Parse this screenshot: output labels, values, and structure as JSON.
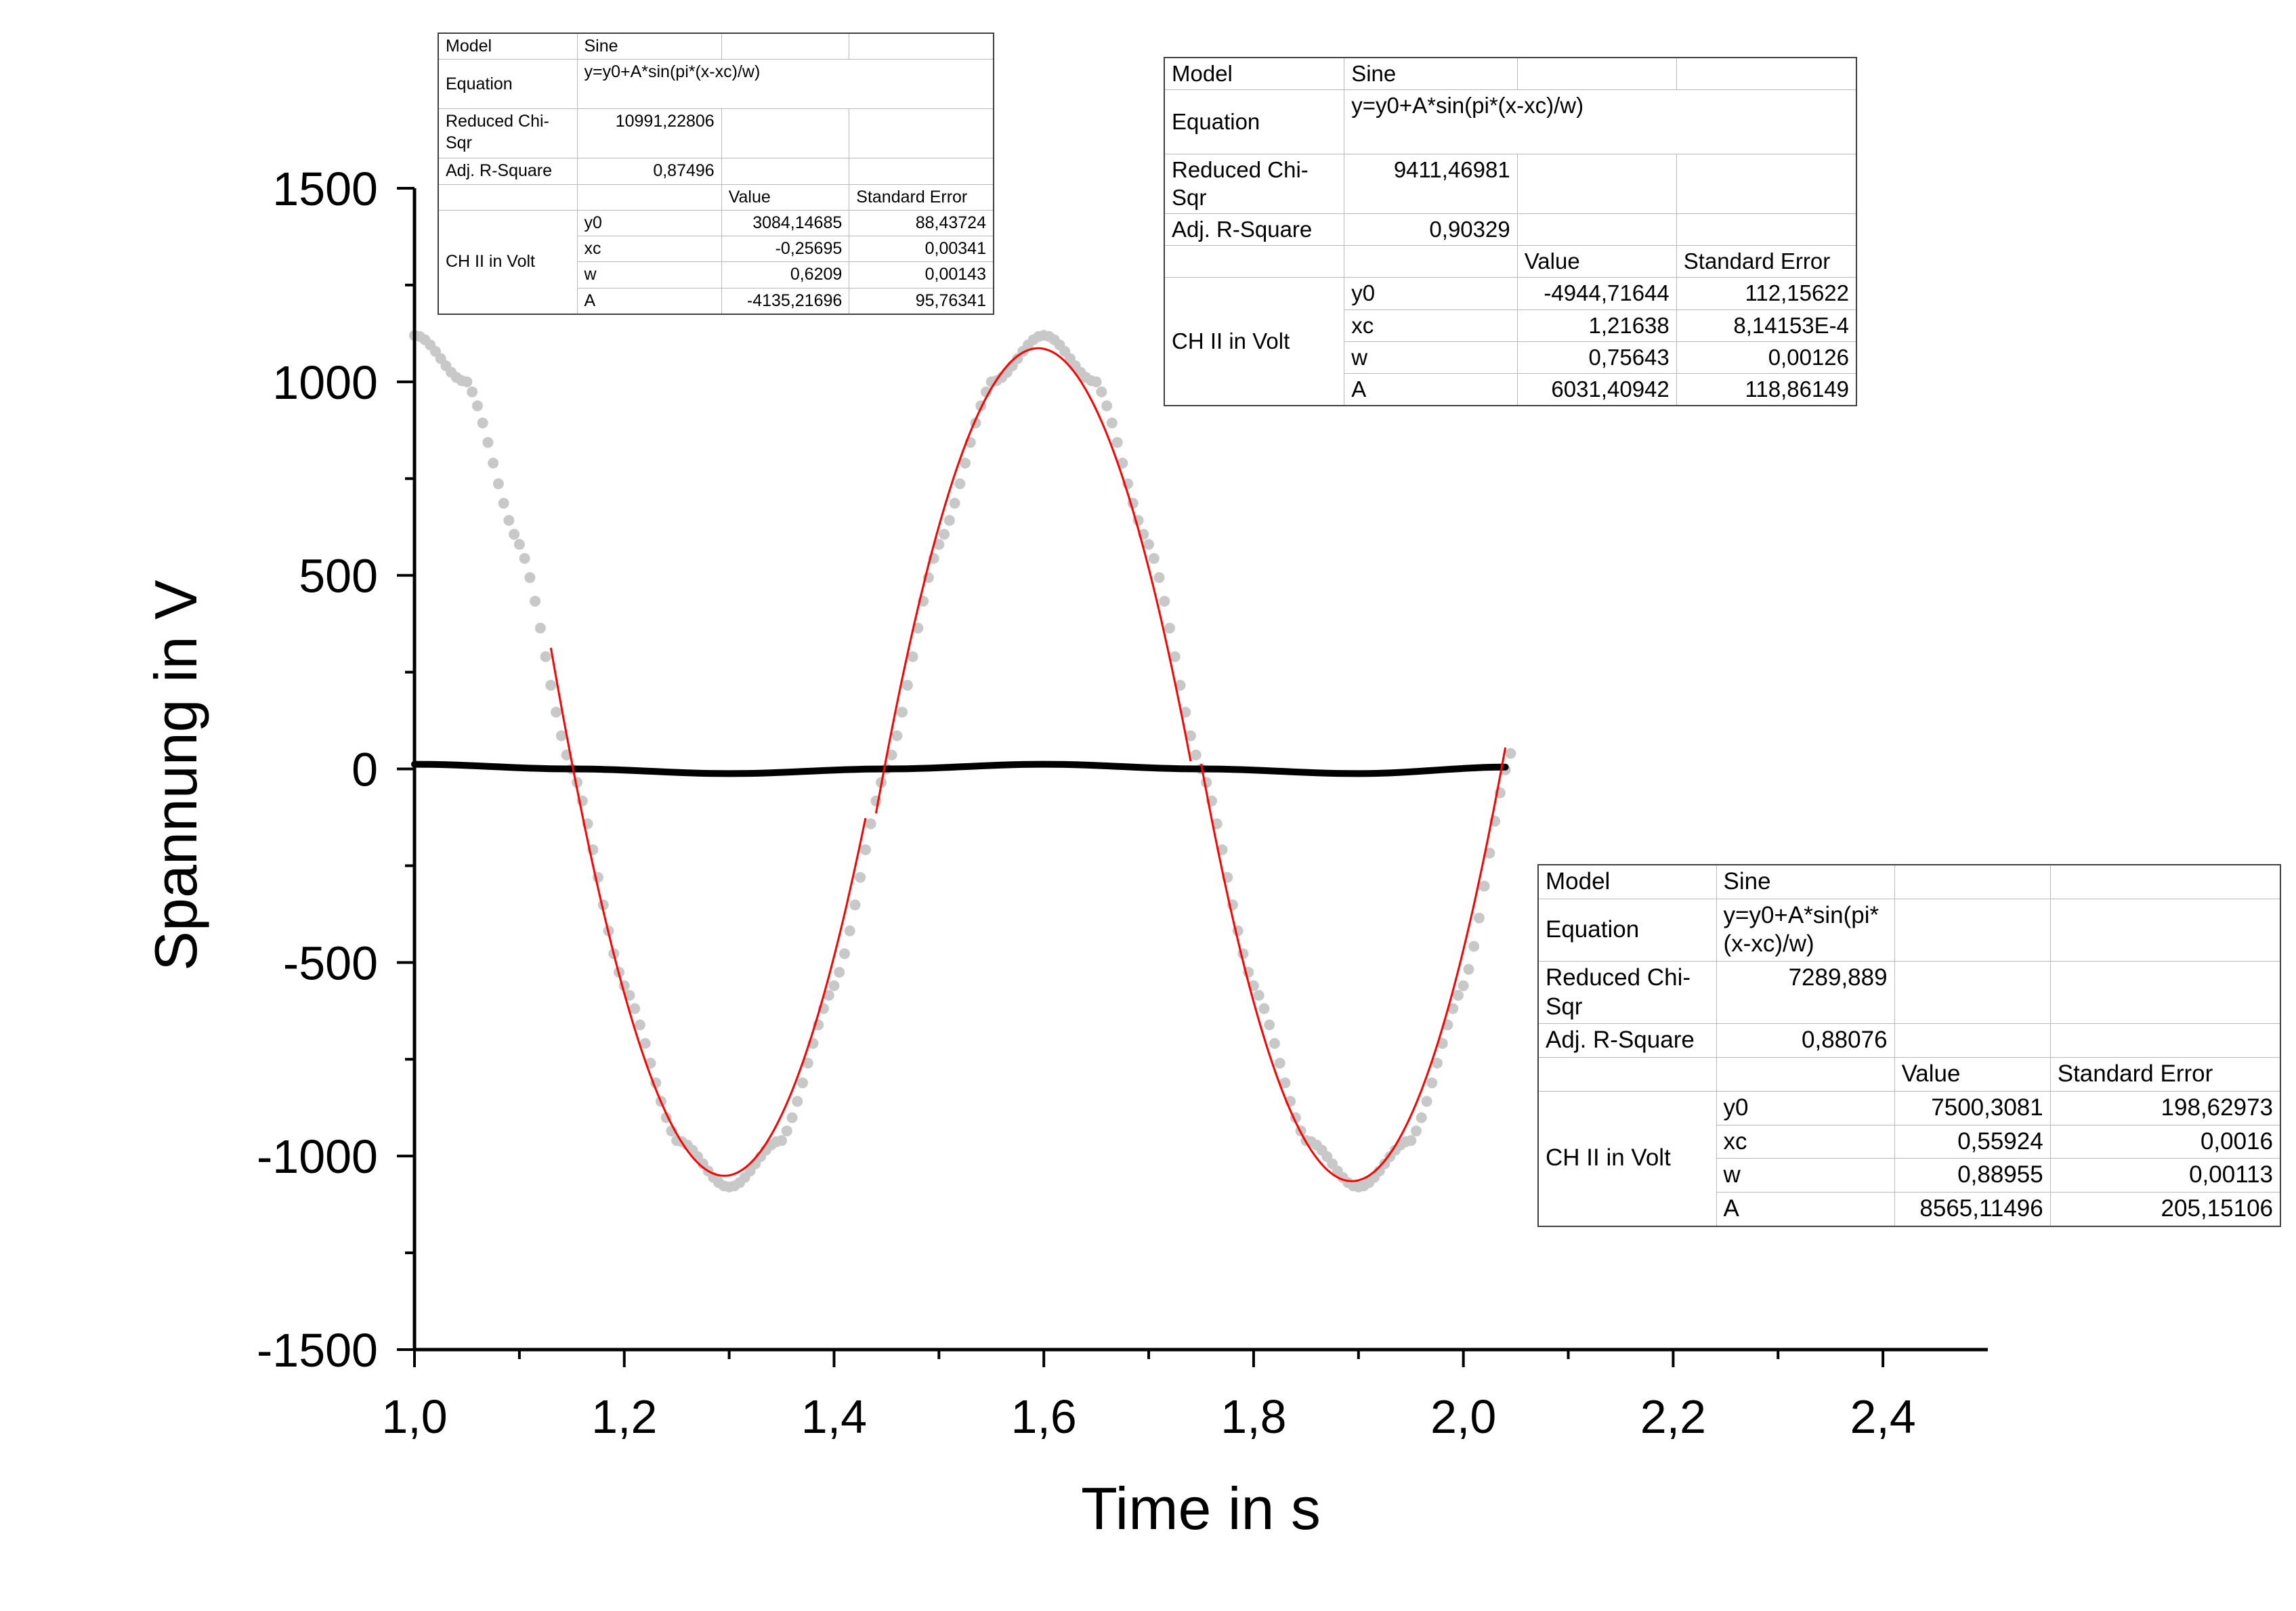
{
  "chart_data": {
    "type": "scatter",
    "title": "",
    "xlabel": "Time in s",
    "ylabel": "Spannung in V",
    "xlim": [
      1.0,
      2.5
    ],
    "ylim": [
      -1500,
      1500
    ],
    "xticks": [
      1.0,
      1.2,
      1.4,
      1.6,
      1.8,
      2.0,
      2.2,
      2.4
    ],
    "xtick_labels": [
      "1,0",
      "1,2",
      "1,4",
      "1,6",
      "1,8",
      "2,0",
      "2,2",
      "2,4"
    ],
    "yticks": [
      1500,
      1000,
      500,
      0,
      -500,
      -1000,
      -1500
    ],
    "ytick_labels": [
      "1500",
      "1000",
      "500",
      "0",
      "-500",
      "-1000",
      "-1500"
    ],
    "grid": false,
    "series": [
      {
        "kind": "scatter",
        "color": "#c8c8c8",
        "x": [
          1.0,
          1.05,
          1.1,
          1.15,
          1.2,
          1.25,
          1.3,
          1.35,
          1.4,
          1.45,
          1.5,
          1.55,
          1.6,
          1.65,
          1.7,
          1.75,
          1.8,
          1.85,
          1.9,
          1.95,
          2.0,
          2.045
        ],
        "y": [
          1120,
          1000,
          580,
          0,
          -560,
          -960,
          -1080,
          -960,
          -560,
          0,
          580,
          1000,
          1120,
          1000,
          580,
          0,
          -560,
          -960,
          -1080,
          -960,
          -560,
          40
        ]
      },
      {
        "kind": "line",
        "color": "#000000",
        "x": [
          1.0,
          1.15,
          1.3,
          1.45,
          1.6,
          1.75,
          1.9,
          2.045
        ],
        "y": [
          12,
          0,
          -12,
          0,
          12,
          0,
          -12,
          5
        ]
      },
      {
        "kind": "fit",
        "color": "#ff0000",
        "x_start": 1.13,
        "x_end": 1.43,
        "y0": 3084.14685,
        "xc": -0.25695,
        "w": 0.6209,
        "A": -4135.21696
      },
      {
        "kind": "fit",
        "color": "#ff0000",
        "x_start": 1.44,
        "x_end": 1.74,
        "y0": -4944.71644,
        "xc": 1.21638,
        "w": 0.75643,
        "A": 6031.40942
      },
      {
        "kind": "fit",
        "color": "#ff0000",
        "x_start": 1.75,
        "x_end": 2.04,
        "y0": 7500.3081,
        "xc": 0.55924,
        "w": 0.88955,
        "A": 8565.11496
      }
    ]
  },
  "fit_tables": [
    {
      "model_label": "Model",
      "model": "Sine",
      "equation_label": "Equation",
      "equation": "y=y0+A*sin(pi*(x-xc)/w)",
      "chisqr_label": "Reduced Chi-Sqr",
      "chisqr": "10991,22806",
      "r2_label": "Adj. R-Square",
      "r2": "0,87496",
      "value_header": "Value",
      "error_header": "Standard Error",
      "group_label": "CH II in Volt",
      "params": [
        {
          "name": "y0",
          "value": "3084,14685",
          "error": "88,43724"
        },
        {
          "name": "xc",
          "value": "-0,25695",
          "error": "0,00341"
        },
        {
          "name": "w",
          "value": "0,6209",
          "error": "0,00143"
        },
        {
          "name": "A",
          "value": "-4135,21696",
          "error": "95,76341"
        }
      ]
    },
    {
      "model_label": "Model",
      "model": "Sine",
      "equation_label": "Equation",
      "equation": "y=y0+A*sin(pi*(x-xc)/w)",
      "chisqr_label": "Reduced Chi-Sqr",
      "chisqr": "9411,46981",
      "r2_label": "Adj. R-Square",
      "r2": "0,90329",
      "value_header": "Value",
      "error_header": "Standard Error",
      "group_label": "CH II in Volt",
      "params": [
        {
          "name": "y0",
          "value": "-4944,71644",
          "error": "112,15622"
        },
        {
          "name": "xc",
          "value": "1,21638",
          "error": "8,14153E-4"
        },
        {
          "name": "w",
          "value": "0,75643",
          "error": "0,00126"
        },
        {
          "name": "A",
          "value": "6031,40942",
          "error": "118,86149"
        }
      ]
    },
    {
      "model_label": "Model",
      "model": "Sine",
      "equation_label": "Equation",
      "equation": "y=y0+A*sin(pi*(x-xc)/w)",
      "chisqr_label": "Reduced Chi-Sqr",
      "chisqr": "7289,889",
      "r2_label": "Adj. R-Square",
      "r2": "0,88076",
      "value_header": "Value",
      "error_header": "Standard Error",
      "group_label": "CH II in Volt",
      "params": [
        {
          "name": "y0",
          "value": "7500,3081",
          "error": "198,62973"
        },
        {
          "name": "xc",
          "value": "0,55924",
          "error": "0,0016"
        },
        {
          "name": "w",
          "value": "0,88955",
          "error": "0,00113"
        },
        {
          "name": "A",
          "value": "8565,11496",
          "error": "205,15106"
        }
      ]
    }
  ]
}
